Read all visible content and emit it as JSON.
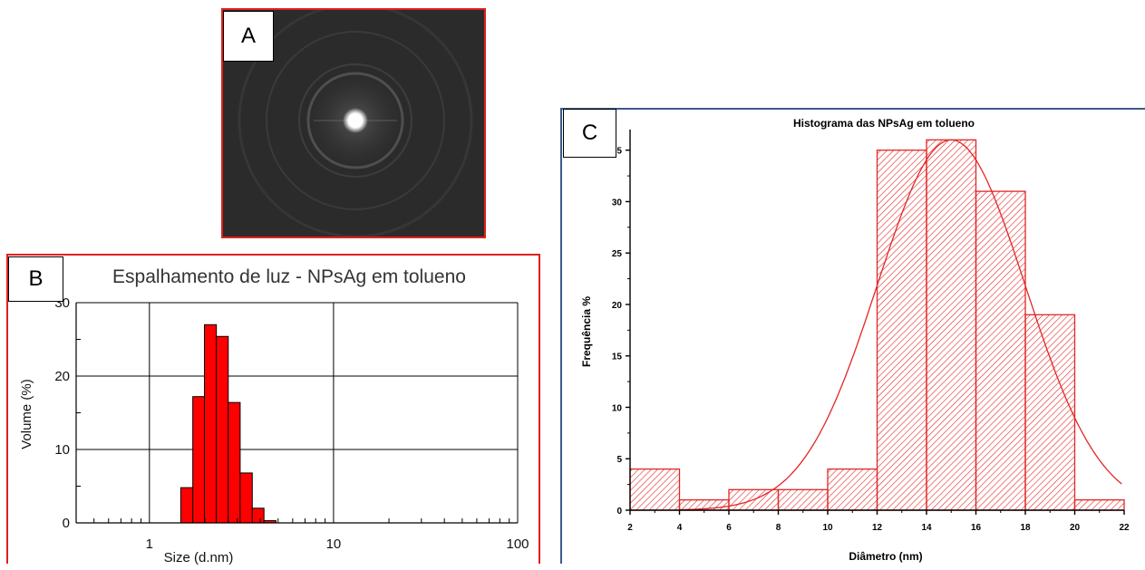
{
  "panels": {
    "a": {
      "letter": "A"
    },
    "b": {
      "letter": "B"
    },
    "c": {
      "letter": "C"
    }
  },
  "chart_data": [
    {
      "panel": "B",
      "type": "bar",
      "title": "Espalhamento de luz - NPsAg em tolueno",
      "xlabel": "Size (d.nm)",
      "ylabel": "Volume (%)",
      "x_scale": "log",
      "xlim": [
        0.4,
        100
      ],
      "ylim": [
        0,
        30
      ],
      "x_ticks": [
        1,
        10,
        100
      ],
      "y_ticks": [
        0,
        10,
        20,
        30
      ],
      "grid": true,
      "bar_color": "#ff0000",
      "bins": [
        {
          "from": 1.48,
          "to": 1.72,
          "value": 4.8
        },
        {
          "from": 1.72,
          "to": 1.99,
          "value": 17.2
        },
        {
          "from": 1.99,
          "to": 2.31,
          "value": 27.0
        },
        {
          "from": 2.31,
          "to": 2.68,
          "value": 25.4
        },
        {
          "from": 2.68,
          "to": 3.11,
          "value": 16.4
        },
        {
          "from": 3.11,
          "to": 3.62,
          "value": 6.8
        },
        {
          "from": 3.62,
          "to": 4.19,
          "value": 2.0
        },
        {
          "from": 4.19,
          "to": 4.87,
          "value": 0.3
        }
      ]
    },
    {
      "panel": "C",
      "type": "bar",
      "title": "Histograma das NPsAg em tolueno",
      "xlabel": "Diâmetro (nm)",
      "ylabel": "Frequência %",
      "xlim": [
        2,
        22
      ],
      "ylim": [
        0,
        37
      ],
      "x_ticks": [
        2,
        4,
        6,
        8,
        10,
        12,
        14,
        16,
        18,
        20,
        22
      ],
      "y_ticks": [
        0,
        5,
        10,
        15,
        20,
        25,
        30,
        35
      ],
      "bar_color": "#e32626",
      "bins": [
        {
          "from": 2,
          "to": 4,
          "value": 4
        },
        {
          "from": 4,
          "to": 6,
          "value": 1
        },
        {
          "from": 6,
          "to": 8,
          "value": 2
        },
        {
          "from": 8,
          "to": 10,
          "value": 2
        },
        {
          "from": 10,
          "to": 12,
          "value": 4
        },
        {
          "from": 12,
          "to": 14,
          "value": 35
        },
        {
          "from": 14,
          "to": 16,
          "value": 36
        },
        {
          "from": 16,
          "to": 18,
          "value": 31
        },
        {
          "from": 18,
          "to": 20,
          "value": 19
        },
        {
          "from": 20,
          "to": 22,
          "value": 1
        }
      ],
      "fit_curve": {
        "type": "gaussian",
        "mean": 15.0,
        "sd": 3.0,
        "peak": 36.0
      }
    }
  ]
}
